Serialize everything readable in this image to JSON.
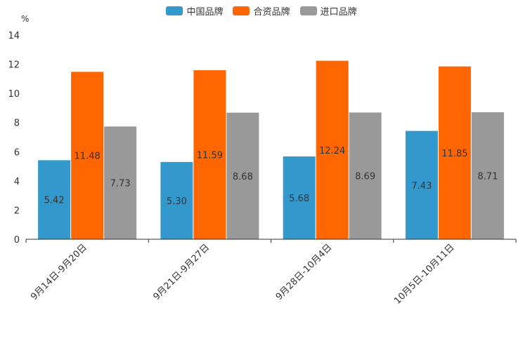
{
  "chart_data": {
    "type": "bar",
    "unit": "%",
    "categories": [
      "9月14日-9月20日",
      "9月21日-9月27日",
      "9月28日-10月4日",
      "10月5日-10月11日"
    ],
    "series": [
      {
        "name": "中国品牌",
        "color": "#3399cc",
        "values": [
          5.42,
          5.3,
          5.68,
          7.43
        ]
      },
      {
        "name": "合资品牌",
        "color": "#ff6600",
        "values": [
          11.48,
          11.59,
          12.24,
          11.85
        ]
      },
      {
        "name": "进口品牌",
        "color": "#999999",
        "values": [
          7.73,
          8.68,
          8.69,
          8.71
        ]
      }
    ],
    "ylim": [
      0,
      14
    ],
    "yticks": [
      0,
      2,
      4,
      6,
      8,
      10,
      12,
      14
    ],
    "legend_position": "top-center"
  }
}
